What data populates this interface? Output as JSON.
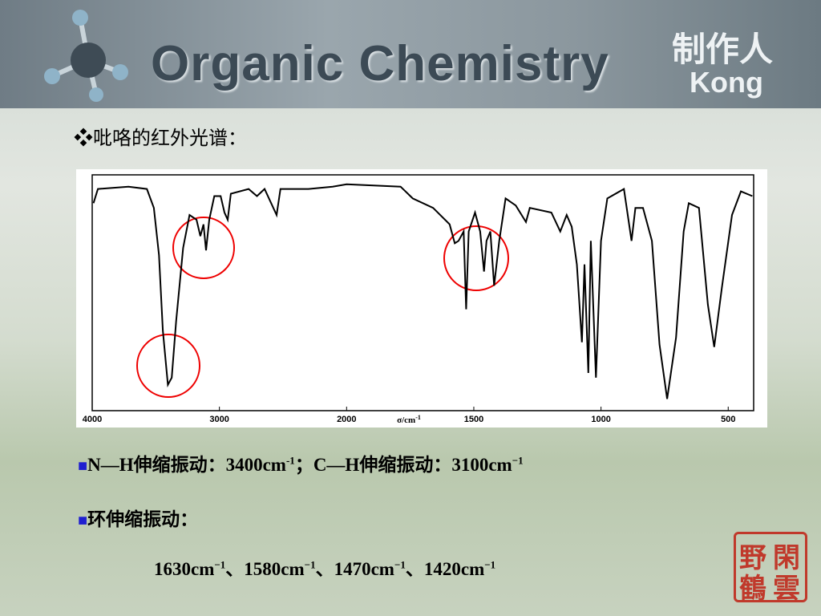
{
  "header": {
    "title": "Organic Chemistry",
    "author_label": "制作人",
    "author": "Kong"
  },
  "heading": "吡咯的红外光谱：",
  "chart_data": {
    "type": "line",
    "xlabel": "σ/cm",
    "xlabel_sup": "-1",
    "x": [
      3990,
      3955,
      3715,
      3570,
      3515,
      3475,
      3445,
      3405,
      3375,
      3340,
      3285,
      3235,
      3180,
      3150,
      3125,
      3105,
      3080,
      3040,
      2990,
      2960,
      2935,
      2910,
      2770,
      2705,
      2645,
      2550,
      2520,
      2300,
      2110,
      2000,
      1788,
      1740,
      1660,
      1595,
      1575,
      1560,
      1540,
      1530,
      1520,
      1495,
      1475,
      1460,
      1450,
      1435,
      1420,
      1400,
      1375,
      1335,
      1295,
      1280,
      1195,
      1160,
      1135,
      1115,
      1095,
      1075,
      1065,
      1050,
      1040,
      1020,
      1000,
      975,
      910,
      880,
      865,
      835,
      800,
      770,
      740,
      705,
      675,
      655,
      615,
      580,
      555,
      525,
      485,
      450,
      405
    ],
    "series": [
      {
        "color": "#000000",
        "values": [
          88,
          94,
          95,
          94,
          86,
          66,
          34,
          11,
          14,
          38,
          69,
          83,
          81,
          74,
          79,
          68,
          81,
          91,
          91,
          84,
          81,
          92,
          94,
          91,
          94,
          83,
          94,
          94,
          95,
          96,
          95,
          90,
          86,
          79,
          71,
          72,
          76,
          43,
          76,
          84,
          76,
          59,
          72,
          76,
          53,
          72,
          90,
          87,
          80,
          86,
          84,
          76,
          83,
          78,
          62,
          29,
          62,
          16,
          72,
          14,
          72,
          90,
          94,
          72,
          86,
          86,
          72,
          28,
          5,
          31,
          76,
          88,
          86,
          45,
          27,
          52,
          83,
          93,
          91
        ]
      }
    ],
    "xlim": [
      4000,
      400
    ],
    "xticks": [
      4000,
      3000,
      2000,
      1500,
      1000,
      500
    ],
    "ylim": [
      0,
      100
    ]
  },
  "bullets": [
    [
      "N—H伸缩振动：3400cm",
      "-1",
      "；C—H伸缩振动：3100cm",
      "−1"
    ],
    [
      "环伸缩振动："
    ],
    [
      "1630cm",
      "−1",
      "、1580cm",
      "−1",
      "、1470cm",
      "−1",
      "、1420cm",
      "−1"
    ]
  ],
  "seal": [
    "閑",
    "雲",
    "野",
    "鶴"
  ]
}
